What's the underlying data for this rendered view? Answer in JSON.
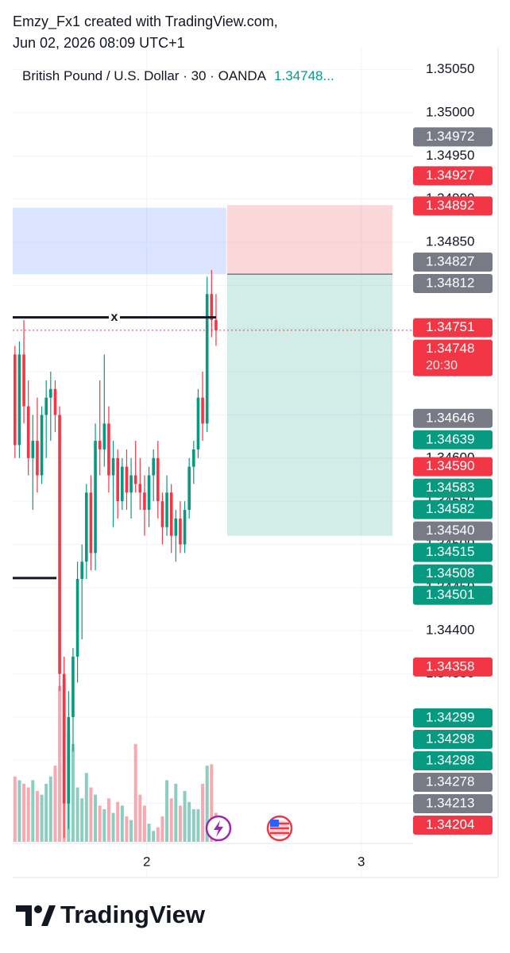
{
  "header": {
    "author": "Emzy_Fx1 created with TradingView.com,",
    "timestamp": "Jun 02, 2026 08:09 UTC+1"
  },
  "chart_data": {
    "type": "candlestick",
    "legend": {
      "symbol": "British Pound / U.S. Dollar · 30 · OANDA",
      "last": "1.34748..."
    },
    "up_color": "#089981",
    "down_color": "#f23645",
    "volume_up_color": "#8ccdc1",
    "volume_down_color": "#f7a9af",
    "ylim": [
      1.341555,
      1.350754
    ],
    "yticks": [
      {
        "value": 1.3505,
        "label": "1.35050"
      },
      {
        "value": 1.35,
        "label": "1.35000"
      },
      {
        "value": 1.3495,
        "label": "1.34950"
      },
      {
        "value": 1.349,
        "label": "1.34900"
      },
      {
        "value": 1.3485,
        "label": "1.34850"
      },
      {
        "value": 1.348,
        "label": "1.34800"
      },
      {
        "value": 1.3475,
        "label": "1.34750"
      },
      {
        "value": 1.347,
        "label": "1.34700"
      },
      {
        "value": 1.3465,
        "label": "1.34650"
      },
      {
        "value": 1.346,
        "label": "1.34600"
      },
      {
        "value": 1.3455,
        "label": "1.34550"
      },
      {
        "value": 1.345,
        "label": "1.34500"
      },
      {
        "value": 1.3445,
        "label": "1.34450"
      },
      {
        "value": 1.344,
        "label": "1.34400"
      },
      {
        "value": 1.3435,
        "label": "1.34350"
      },
      {
        "value": 1.343,
        "label": "1.34300"
      },
      {
        "value": 1.3425,
        "label": "1.34250"
      },
      {
        "value": 1.342,
        "label": "1.34200"
      }
    ],
    "xlim": [
      0,
      89.6
    ],
    "xticks": [
      {
        "value": 30,
        "label": "2"
      },
      {
        "value": 78,
        "label": "3"
      }
    ],
    "grid": true,
    "open": [
      1.3472,
      1.34615,
      1.3472,
      1.3466,
      1.346,
      1.3462,
      1.3458,
      1.3465,
      1.3467,
      1.3468,
      1.3465,
      1.3435,
      1.342,
      1.343,
      1.3437,
      1.3446,
      1.3448,
      1.3456,
      1.3449,
      1.3462,
      1.3461,
      1.3464,
      1.3458,
      1.346,
      1.3455,
      1.3459,
      1.3456,
      1.3458,
      1.3457,
      1.3456,
      1.3454,
      1.3458,
      1.346,
      1.3455,
      1.3452,
      1.3456,
      1.3451,
      1.3453,
      1.345,
      1.3454,
      1.3459,
      1.3461,
      1.3467,
      1.3464,
      1.3479,
      1.3476
    ],
    "high": [
      1.3473,
      1.34735,
      1.3476,
      1.3469,
      1.3465,
      1.3467,
      1.3466,
      1.3469,
      1.347,
      1.3469,
      1.3466,
      1.3437,
      1.3433,
      1.3438,
      1.3448,
      1.345,
      1.3457,
      1.3458,
      1.3464,
      1.3469,
      1.3472,
      1.3466,
      1.3462,
      1.3461,
      1.346,
      1.3461,
      1.346,
      1.3462,
      1.346,
      1.3458,
      1.3459,
      1.3461,
      1.3462,
      1.3456,
      1.3458,
      1.3457,
      1.3454,
      1.3455,
      1.3455,
      1.346,
      1.3462,
      1.3468,
      1.347,
      1.3481,
      1.34818,
      1.3479
    ],
    "low": [
      1.346,
      1.346,
      1.3464,
      1.3458,
      1.3454,
      1.3456,
      1.3457,
      1.346,
      1.3462,
      1.3463,
      1.3433,
      1.3416,
      1.3417,
      1.3426,
      1.3434,
      1.3439,
      1.3446,
      1.3447,
      1.3447,
      1.3458,
      1.3459,
      1.3456,
      1.3452,
      1.3453,
      1.3454,
      1.3454,
      1.3453,
      1.3456,
      1.3454,
      1.3451,
      1.3452,
      1.3455,
      1.3453,
      1.345,
      1.3451,
      1.3449,
      1.3448,
      1.3449,
      1.3449,
      1.3453,
      1.3457,
      1.346,
      1.3462,
      1.3463,
      1.3474,
      1.3473
    ],
    "close": [
      1.34615,
      1.3472,
      1.3466,
      1.346,
      1.3462,
      1.3458,
      1.3465,
      1.3467,
      1.3468,
      1.3465,
      1.3435,
      1.342,
      1.343,
      1.3437,
      1.3446,
      1.3448,
      1.3456,
      1.3449,
      1.3462,
      1.3461,
      1.3464,
      1.3458,
      1.346,
      1.3455,
      1.3459,
      1.3456,
      1.3458,
      1.3457,
      1.3456,
      1.3454,
      1.3458,
      1.346,
      1.3455,
      1.3452,
      1.3456,
      1.3451,
      1.3453,
      1.345,
      1.3454,
      1.3459,
      1.3461,
      1.3467,
      1.3464,
      1.3479,
      1.3476,
      1.34748
    ],
    "volume": [
      1.8,
      1.7,
      1.6,
      1.5,
      1.7,
      1.4,
      1.3,
      1.6,
      1.8,
      2.1,
      4.3,
      4.5,
      3.0,
      2.7,
      1.5,
      1.2,
      1.9,
      1.5,
      1.3,
      1.0,
      0.9,
      1.2,
      0.8,
      1.1,
      1.0,
      0.7,
      0.6,
      2.7,
      1.3,
      1.0,
      0.5,
      0.3,
      0.4,
      0.7,
      1.7,
      1.2,
      1.6,
      1.0,
      1.4,
      1.1,
      0.9,
      0.9,
      1.6,
      2.1,
      2.14,
      0.8
    ],
    "vlim": [
      0,
      4.6
    ],
    "zone": {
      "top": 1.3489,
      "bottom": 1.34813,
      "x": [
        0,
        47.8
      ],
      "color": "#2962ff"
    },
    "position": {
      "stop": 1.34893,
      "entry": 1.34813,
      "target": 1.3451,
      "x": [
        48,
        85
      ]
    },
    "lines": [
      {
        "price": 1.34763,
        "x": [
          0,
          45.5
        ],
        "label": "x"
      },
      {
        "price": 1.34461,
        "x": [
          0,
          9.8
        ]
      }
    ],
    "last_price": 1.34748,
    "countdown": "20:30",
    "price_labels": {
      "values": [
        1.34972,
        1.34927,
        1.34892,
        1.34827,
        1.34812,
        1.34751,
        1.34748,
        1.34646,
        1.34639,
        1.3459,
        1.34583,
        1.34582,
        1.3454,
        1.34515,
        1.34508,
        1.34501,
        1.34358,
        1.34299,
        1.34298,
        1.34298,
        1.34278,
        1.34213,
        1.34204
      ],
      "value_labels": [
        "1.34972",
        "1.34927",
        "1.34892",
        "1.34827",
        "1.34812",
        "1.34751",
        "1.34748",
        "1.34646",
        "1.34639",
        "1.34590",
        "1.34583",
        "1.34582",
        "1.34540",
        "1.34515",
        "1.34508",
        "1.34501",
        "1.34358",
        "1.34299",
        "1.34298",
        "1.34298",
        "1.34278",
        "1.34213",
        "1.34204"
      ],
      "colors": [
        "#787b86",
        "#f23645",
        "#f23645",
        "#787b86",
        "#787b86",
        "#f23645",
        "#f23645",
        "#787b86",
        "#089981",
        "#f23645",
        "#089981",
        "#089981",
        "#787b86",
        "#089981",
        "#089981",
        "#089981",
        "#f23645",
        "#089981",
        "#089981",
        "#089981",
        "#787b86",
        "#787b86",
        "#f23645"
      ]
    }
  },
  "footer": {
    "brand": "TradingView"
  }
}
